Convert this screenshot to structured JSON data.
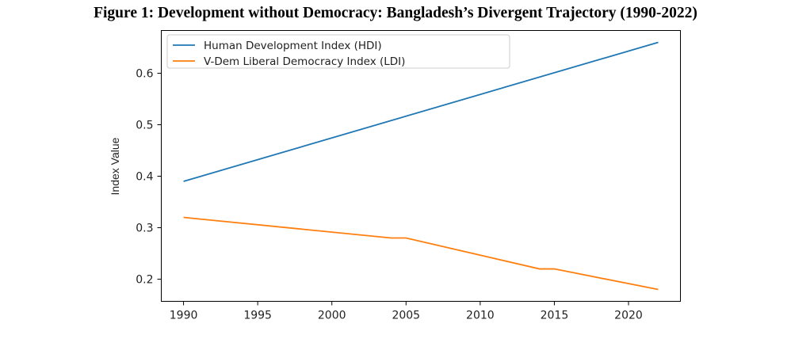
{
  "figure_title": "Figure 1: Development without Democracy: Bangladesh’s Divergent Trajectory (1990-2022)",
  "chart_data": {
    "type": "line",
    "title": "Figure 1: Development without Democracy: Bangladesh’s Divergent Trajectory (1990-2022)",
    "xlabel": "",
    "ylabel": "Index Value",
    "xlim": [
      1988.5,
      2023.5
    ],
    "ylim": [
      0.157,
      0.683
    ],
    "xticks": [
      1990,
      1995,
      2000,
      2005,
      2010,
      2015,
      2020
    ],
    "yticks": [
      0.2,
      0.3,
      0.4,
      0.5,
      0.6
    ],
    "grid": false,
    "legend_position": "top-left",
    "series": [
      {
        "name": "Human Development Index (HDI)",
        "color": "#1f77b4",
        "x": [
          1990,
          2022
        ],
        "y": [
          0.39,
          0.66
        ]
      },
      {
        "name": "V-Dem Liberal Democracy Index (LDI)",
        "color": "#ff7f0e",
        "x": [
          1990,
          2004,
          2005,
          2014,
          2015,
          2022
        ],
        "y": [
          0.32,
          0.28,
          0.28,
          0.22,
          0.22,
          0.18
        ]
      }
    ]
  }
}
